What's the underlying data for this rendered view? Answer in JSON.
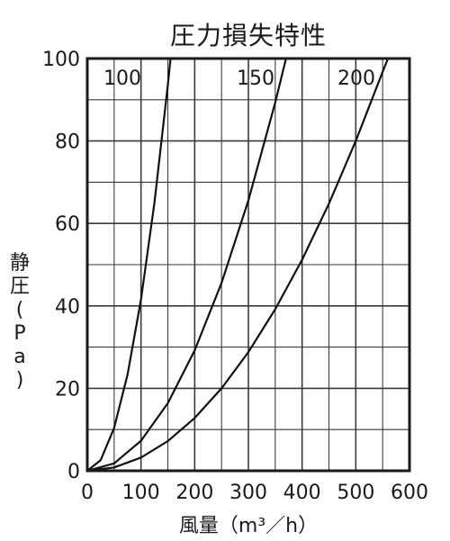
{
  "chart_data": {
    "type": "line",
    "title": "圧力損失特性",
    "xlabel": "風量（m³／h）",
    "ylabel_chars": [
      "静",
      "圧",
      "(",
      "P",
      "a",
      ")"
    ],
    "ylabel": "静圧(Pa)",
    "xlim": [
      0,
      600
    ],
    "ylim": [
      0,
      100
    ],
    "x_ticks": [
      "0",
      "100",
      "200",
      "300",
      "400",
      "500",
      "600"
    ],
    "y_ticks": [
      "0",
      "20",
      "40",
      "60",
      "80",
      "100"
    ],
    "grid": true,
    "series": [
      {
        "name": "100",
        "x": [
          0,
          25,
          50,
          75,
          100,
          125,
          150,
          155
        ],
        "y": [
          0,
          2.6,
          10.4,
          23.4,
          41.6,
          65.0,
          93.6,
          100
        ]
      },
      {
        "name": "150",
        "x": [
          0,
          50,
          100,
          150,
          200,
          250,
          300,
          350,
          370
        ],
        "y": [
          0,
          1.8,
          7.3,
          16.4,
          29.2,
          45.6,
          65.6,
          89.3,
          100
        ]
      },
      {
        "name": "200",
        "x": [
          0,
          50,
          100,
          150,
          200,
          250,
          300,
          350,
          400,
          450,
          500,
          550,
          560
        ],
        "y": [
          0,
          0.8,
          3.2,
          7.2,
          12.8,
          20.0,
          28.8,
          39.2,
          51.2,
          64.8,
          80.0,
          96.8,
          100
        ]
      }
    ]
  }
}
